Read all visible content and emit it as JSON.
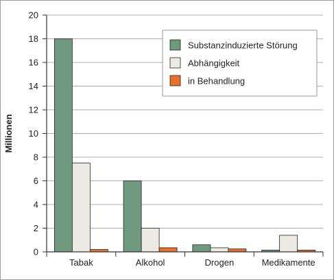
{
  "colors": {
    "frame": "#9a9a9a",
    "grid": "#aeaeae",
    "axis": "#333333",
    "bar_edge": "#222222",
    "legend_border": "#9a9a9a"
  },
  "chart_data": {
    "type": "bar",
    "title": "",
    "xlabel": "",
    "ylabel": "Millionen",
    "ylim": [
      0,
      20
    ],
    "yticks": [
      0,
      2,
      4,
      6,
      8,
      10,
      12,
      14,
      16,
      18,
      20
    ],
    "grid": true,
    "legend_position": "top-right",
    "categories": [
      "Tabak",
      "Alkohol",
      "Drogen",
      "Medikamente"
    ],
    "series": [
      {
        "name": "Substanzinduzierte Störung",
        "color": "#6f9a80",
        "values": [
          18,
          6,
          0.6,
          0.15
        ]
      },
      {
        "name": "Abhängigkeit",
        "color": "#eceae2",
        "values": [
          7.5,
          2,
          0.35,
          1.4
        ]
      },
      {
        "name": "in Behandlung",
        "color": "#e8702a",
        "values": [
          0.2,
          0.35,
          0.25,
          0.15
        ]
      }
    ]
  }
}
